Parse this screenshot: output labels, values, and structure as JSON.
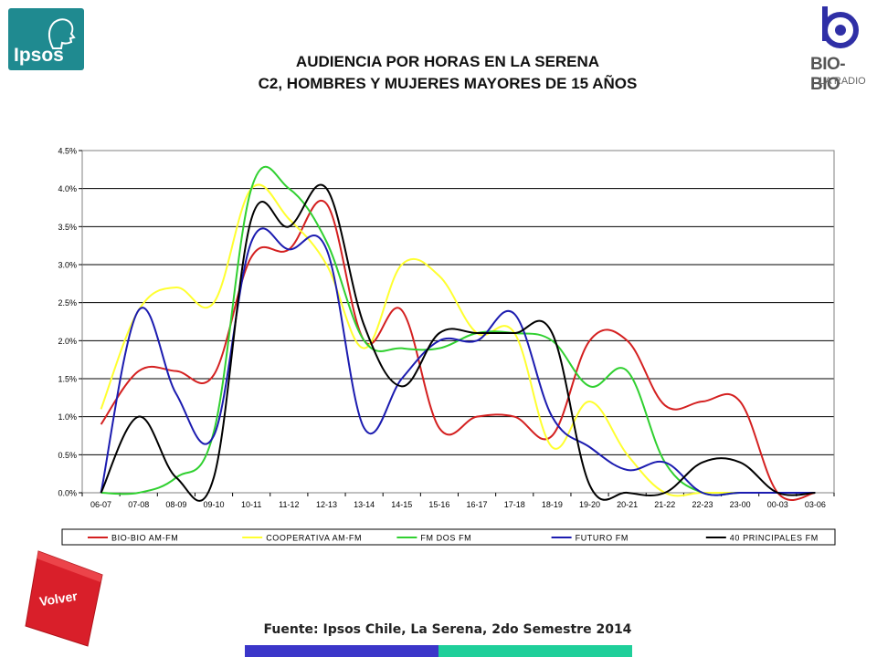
{
  "logos": {
    "ipsos": "Ipsos",
    "biobio": "BIO-BIO",
    "biobio_sub": "LA RADIO"
  },
  "title_line1": "AUDIENCIA POR HORAS EN LA SERENA",
  "title_line2": "C2, HOMBRES Y MUJERES MAYORES DE 15 AÑOS",
  "volver_label": "Volver",
  "source": "Fuente: Ipsos Chile, La Serena, 2do Semestre 2014",
  "colors": {
    "footer_left": "#3b36c9",
    "footer_right": "#1fcf9a",
    "volver": "#d91f2a",
    "ipsos": "#1f8a90"
  },
  "chart_data": {
    "type": "line",
    "smooth": true,
    "title": "",
    "xlabel": "",
    "ylabel": "",
    "ylim": [
      0,
      0.045
    ],
    "ytick_step": 0.005,
    "yticks": [
      "0.0%",
      "0.5%",
      "1.0%",
      "1.5%",
      "2.0%",
      "2.5%",
      "3.0%",
      "3.5%",
      "4.0%",
      "4.5%"
    ],
    "grid": "horizontal",
    "legend_position": "bottom",
    "categories": [
      "06-07",
      "07-08",
      "08-09",
      "09-10",
      "10-11",
      "11-12",
      "12-13",
      "13-14",
      "14-15",
      "15-16",
      "16-17",
      "17-18",
      "18-19",
      "19-20",
      "20-21",
      "21-22",
      "22-23",
      "23-00",
      "00-03",
      "03-06"
    ],
    "series": [
      {
        "name": "BIO-BIO AM-FM",
        "color": "#d42020",
        "values": [
          0.009,
          0.016,
          0.016,
          0.0155,
          0.031,
          0.032,
          0.038,
          0.02,
          0.024,
          0.0085,
          0.01,
          0.01,
          0.0075,
          0.02,
          0.02,
          0.0115,
          0.012,
          0.012,
          0.0,
          0.0
        ]
      },
      {
        "name": "COOPERATIVA AM-FM",
        "color": "#ffff30",
        "values": [
          0.011,
          0.024,
          0.027,
          0.025,
          0.04,
          0.036,
          0.03,
          0.019,
          0.03,
          0.0285,
          0.021,
          0.021,
          0.006,
          0.012,
          0.005,
          0.0,
          0.0,
          0.0,
          0.0,
          0.0
        ]
      },
      {
        "name": "FM DOS FM",
        "color": "#30d030",
        "values": [
          0.0,
          0.0,
          0.002,
          0.008,
          0.04,
          0.04,
          0.033,
          0.02,
          0.019,
          0.019,
          0.021,
          0.021,
          0.02,
          0.014,
          0.016,
          0.004,
          0.0,
          0.0,
          0.0,
          0.0
        ]
      },
      {
        "name": "FUTURO FM",
        "color": "#1c1cb0",
        "values": [
          0.0,
          0.024,
          0.013,
          0.0075,
          0.033,
          0.032,
          0.032,
          0.0085,
          0.015,
          0.02,
          0.02,
          0.0235,
          0.01,
          0.006,
          0.003,
          0.004,
          0.0,
          0.0,
          0.0,
          0.0
        ]
      },
      {
        "name": "40 PRINCIPALES FM",
        "color": "#000000",
        "values": [
          0.0,
          0.01,
          0.002,
          0.002,
          0.036,
          0.035,
          0.04,
          0.022,
          0.014,
          0.021,
          0.021,
          0.021,
          0.021,
          0.001,
          0.0,
          0.0,
          0.004,
          0.004,
          0.0,
          0.0
        ]
      }
    ]
  }
}
